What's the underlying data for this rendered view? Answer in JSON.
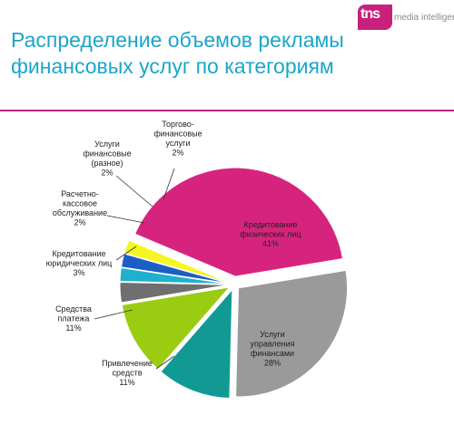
{
  "title": {
    "line1": "Распределение объемов рекламы",
    "line2": "финансовых услуг по категориям"
  },
  "logo": {
    "mark": "tns",
    "text": "media intelligence"
  },
  "colors": {
    "title": "#1aa6c9",
    "rule": "#c7217d"
  },
  "chart_data": {
    "type": "pie",
    "slices": [
      {
        "name": "Кредитование физических лиц",
        "label_lines": [
          "Кредитование",
          "физических лиц",
          "41%"
        ],
        "value": 41,
        "color": "#d6247e"
      },
      {
        "name": "Услуги управления финансами",
        "label_lines": [
          "Услуги",
          "управления",
          "финансами",
          "28%"
        ],
        "value": 28,
        "color": "#9a9a9a"
      },
      {
        "name": "Привлечение средств",
        "label_lines": [
          "Привлечение",
          "средств",
          "11%"
        ],
        "value": 11,
        "color": "#119a94"
      },
      {
        "name": "Средства платежа",
        "label_lines": [
          "Средства",
          "платежа",
          "11%"
        ],
        "value": 11,
        "color": "#9acd12"
      },
      {
        "name": "Кредитование юридических лиц",
        "label_lines": [
          "Кредитование",
          "юридических лиц",
          "3%"
        ],
        "value": 3,
        "color": "#6f6f6f"
      },
      {
        "name": "Расчетно-кассовое обслуживание",
        "label_lines": [
          "Расчетно-",
          "кассовое",
          "обслуживание",
          "2%"
        ],
        "value": 2,
        "color": "#1fb0d0"
      },
      {
        "name": "Услуги финансовые (разное)",
        "label_lines": [
          "Услуги",
          "финансовые",
          "(разное)",
          "2%"
        ],
        "value": 2,
        "color": "#1c5fc4"
      },
      {
        "name": "Торгово-финансовые услуги",
        "label_lines": [
          "Торгово-",
          "финансовые",
          "услуги",
          "2%"
        ],
        "value": 2,
        "color": "#f5f520"
      }
    ]
  }
}
